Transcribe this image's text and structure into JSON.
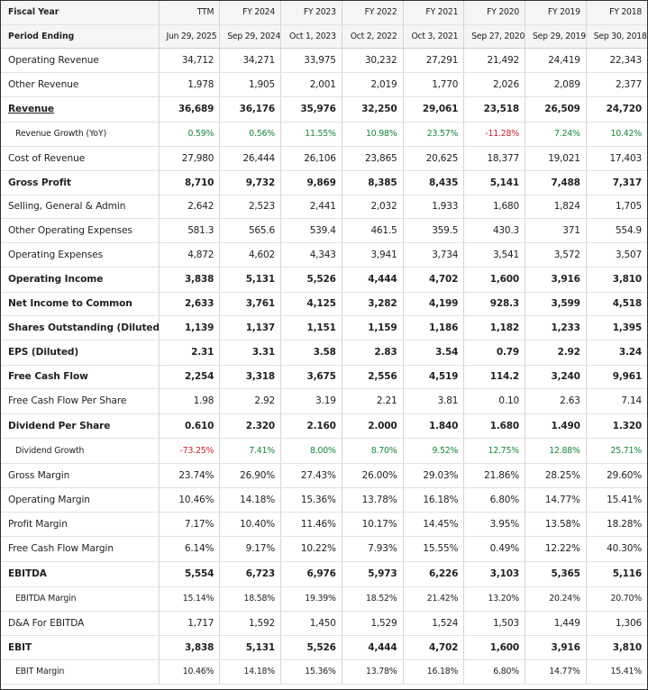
{
  "header": {
    "fiscal_year_label": "Fiscal Year",
    "period_ending_label": "Period Ending",
    "years": [
      "TTM",
      "FY 2024",
      "FY 2023",
      "FY 2022",
      "FY 2021",
      "FY 2020",
      "FY 2019",
      "FY 2018"
    ],
    "periods": [
      "Jun 29, 2025",
      "Sep 29, 2024",
      "Oct 1, 2023",
      "Oct 2, 2022",
      "Oct 3, 2021",
      "Sep 27, 2020",
      "Sep 29, 2019",
      "Sep 30, 2018"
    ]
  },
  "rows": [
    {
      "label": "Operating Revenue",
      "values": [
        "34,712",
        "34,271",
        "33,975",
        "30,232",
        "27,291",
        "21,492",
        "24,419",
        "22,343"
      ]
    },
    {
      "label": "Other Revenue",
      "values": [
        "1,978",
        "1,905",
        "2,001",
        "2,019",
        "1,770",
        "2,026",
        "2,089",
        "2,377"
      ]
    },
    {
      "label": "Revenue",
      "values": [
        "36,689",
        "36,176",
        "35,976",
        "32,250",
        "29,061",
        "23,518",
        "26,509",
        "24,720"
      ]
    },
    {
      "label": "Revenue Growth (YoY)",
      "values": [
        "0.59%",
        "0.56%",
        "11.55%",
        "10.98%",
        "23.57%",
        "-11.28%",
        "7.24%",
        "10.42%"
      ]
    },
    {
      "label": "Cost of Revenue",
      "values": [
        "27,980",
        "26,444",
        "26,106",
        "23,865",
        "20,625",
        "18,377",
        "19,021",
        "17,403"
      ]
    },
    {
      "label": "Gross Profit",
      "values": [
        "8,710",
        "9,732",
        "9,869",
        "8,385",
        "8,435",
        "5,141",
        "7,488",
        "7,317"
      ]
    },
    {
      "label": "Selling, General & Admin",
      "values": [
        "2,642",
        "2,523",
        "2,441",
        "2,032",
        "1,933",
        "1,680",
        "1,824",
        "1,705"
      ]
    },
    {
      "label": "Other Operating Expenses",
      "values": [
        "581.3",
        "565.6",
        "539.4",
        "461.5",
        "359.5",
        "430.3",
        "371",
        "554.9"
      ]
    },
    {
      "label": "Operating Expenses",
      "values": [
        "4,872",
        "4,602",
        "4,343",
        "3,941",
        "3,734",
        "3,541",
        "3,572",
        "3,507"
      ]
    },
    {
      "label": "Operating Income",
      "values": [
        "3,838",
        "5,131",
        "5,526",
        "4,444",
        "4,702",
        "1,600",
        "3,916",
        "3,810"
      ]
    },
    {
      "label": "Net Income to Common",
      "values": [
        "2,633",
        "3,761",
        "4,125",
        "3,282",
        "4,199",
        "928.3",
        "3,599",
        "4,518"
      ]
    },
    {
      "label": "Shares Outstanding (Diluted)",
      "values": [
        "1,139",
        "1,137",
        "1,151",
        "1,159",
        "1,186",
        "1,182",
        "1,233",
        "1,395"
      ]
    },
    {
      "label": "EPS (Diluted)",
      "values": [
        "2.31",
        "3.31",
        "3.58",
        "2.83",
        "3.54",
        "0.79",
        "2.92",
        "3.24"
      ]
    },
    {
      "label": "Free Cash Flow",
      "values": [
        "2,254",
        "3,318",
        "3,675",
        "2,556",
        "4,519",
        "114.2",
        "3,240",
        "9,961"
      ]
    },
    {
      "label": "Free Cash Flow Per Share",
      "values": [
        "1.98",
        "2.92",
        "3.19",
        "2.21",
        "3.81",
        "0.10",
        "2.63",
        "7.14"
      ]
    },
    {
      "label": "Dividend Per Share",
      "values": [
        "0.610",
        "2.320",
        "2.160",
        "2.000",
        "1.840",
        "1.680",
        "1.490",
        "1.320"
      ]
    },
    {
      "label": "Dividend Growth",
      "values": [
        "-73.25%",
        "7.41%",
        "8.00%",
        "8.70%",
        "9.52%",
        "12.75%",
        "12.88%",
        "25.71%"
      ]
    },
    {
      "label": "Gross Margin",
      "values": [
        "23.74%",
        "26.90%",
        "27.43%",
        "26.00%",
        "29.03%",
        "21.86%",
        "28.25%",
        "29.60%"
      ]
    },
    {
      "label": "Operating Margin",
      "values": [
        "10.46%",
        "14.18%",
        "15.36%",
        "13.78%",
        "16.18%",
        "6.80%",
        "14.77%",
        "15.41%"
      ]
    },
    {
      "label": "Profit Margin",
      "values": [
        "7.17%",
        "10.40%",
        "11.46%",
        "10.17%",
        "14.45%",
        "3.95%",
        "13.58%",
        "18.28%"
      ]
    },
    {
      "label": "Free Cash Flow Margin",
      "values": [
        "6.14%",
        "9.17%",
        "10.22%",
        "7.93%",
        "15.55%",
        "0.49%",
        "12.22%",
        "40.30%"
      ]
    },
    {
      "label": "EBITDA",
      "values": [
        "5,554",
        "6,723",
        "6,976",
        "5,973",
        "6,226",
        "3,103",
        "5,365",
        "5,116"
      ]
    },
    {
      "label": "EBITDA Margin",
      "values": [
        "15.14%",
        "18.58%",
        "19.39%",
        "18.52%",
        "21.42%",
        "13.20%",
        "20.24%",
        "20.70%"
      ]
    },
    {
      "label": "D&A For EBITDA",
      "values": [
        "1,717",
        "1,592",
        "1,450",
        "1,529",
        "1,524",
        "1,503",
        "1,449",
        "1,306"
      ]
    },
    {
      "label": "EBIT",
      "values": [
        "3,838",
        "5,131",
        "5,526",
        "4,444",
        "4,702",
        "1,600",
        "3,916",
        "3,810"
      ]
    },
    {
      "label": "EBIT Margin",
      "values": [
        "10.46%",
        "14.18%",
        "15.36%",
        "13.78%",
        "16.18%",
        "6.80%",
        "14.77%",
        "15.41%"
      ]
    }
  ],
  "colors": {
    "positive": "#16873a",
    "negative": "#c8202e"
  }
}
